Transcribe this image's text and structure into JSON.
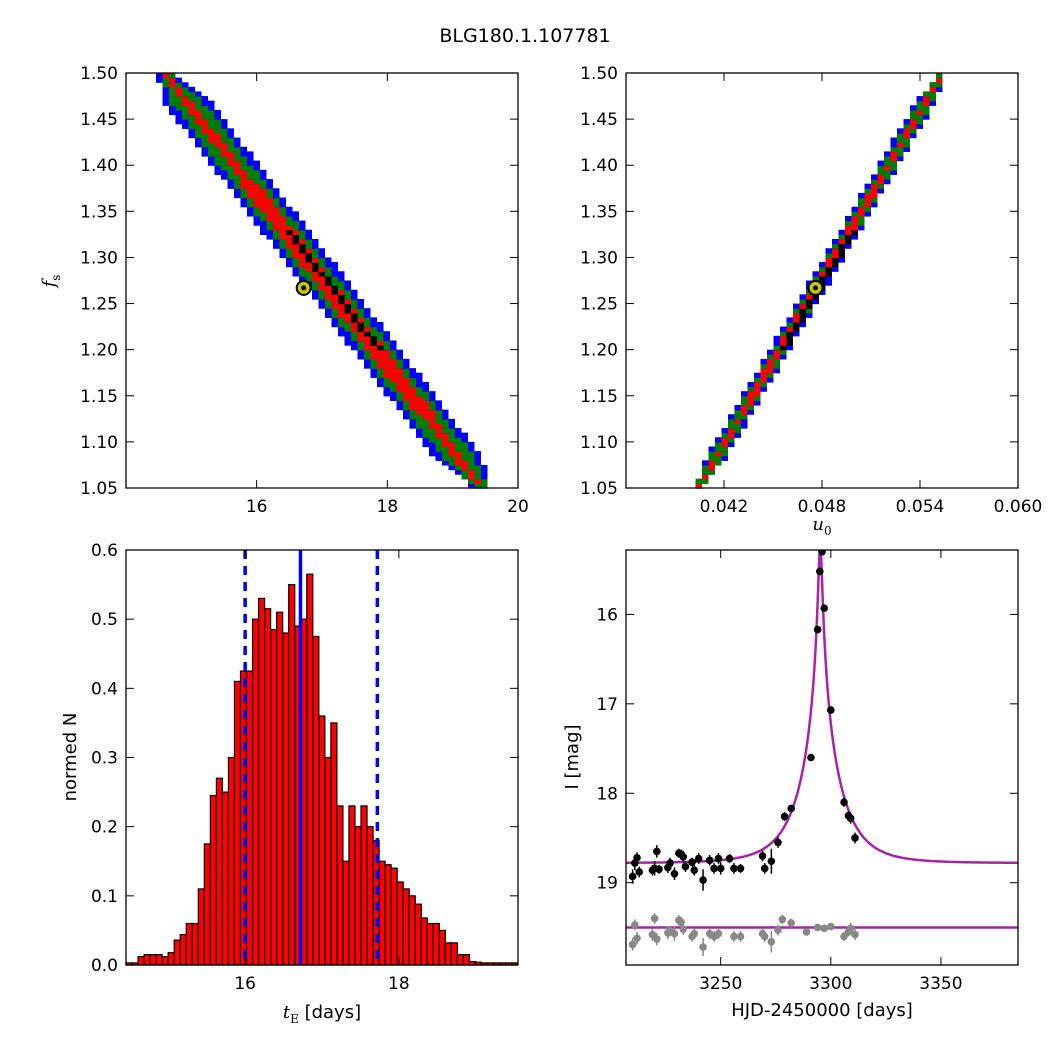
{
  "title": "BLG180.1.107781",
  "colors": {
    "outer": "#0000ff",
    "middle": "#008000",
    "inner": "#ff0000",
    "trace": "#000000",
    "best_fit_marker": "#c8c800",
    "hist_fill": "#ff0000",
    "hist_edge": "#000000",
    "quantile_line": "#0000ff",
    "model_line": "#aa22aa",
    "data_I": "#000000",
    "data_V": "#888888"
  },
  "chart_data": [
    {
      "name": "tE-fs-contours",
      "type": "heatmap",
      "xlabel": "",
      "ylabel": "f",
      "ylabel_sub": "s",
      "xlim": [
        14.0,
        20.0
      ],
      "ylim": [
        1.05,
        1.5
      ],
      "xticks": [
        16,
        18,
        20
      ],
      "xticklabels": [
        "16",
        "18",
        "20"
      ],
      "yticks": [
        1.05,
        1.1,
        1.15,
        1.2,
        1.25,
        1.3,
        1.35,
        1.4,
        1.45,
        1.5
      ],
      "yticklabels": [
        "1.05",
        "1.10",
        "1.15",
        "1.20",
        "1.25",
        "1.30",
        "1.35",
        "1.40",
        "1.45",
        "1.50"
      ],
      "best_fit": {
        "x": 16.72,
        "y": 1.267
      },
      "ridge": {
        "x_at_ymax": 14.6,
        "x_at_ymin": 19.45
      },
      "half_widths": {
        "outer": 0.36,
        "middle": 0.25,
        "inner": 0.14
      }
    },
    {
      "name": "u0-fs-contours",
      "type": "heatmap",
      "xlabel": "u",
      "xlabel_sub": "0",
      "ylabel": "",
      "xlim": [
        0.036,
        0.06
      ],
      "ylim": [
        1.05,
        1.5
      ],
      "xticks": [
        0.042,
        0.048,
        0.054,
        0.06
      ],
      "xticklabels": [
        "0.042",
        "0.048",
        "0.054",
        "0.060"
      ],
      "yticks": [
        1.05,
        1.1,
        1.15,
        1.2,
        1.25,
        1.3,
        1.35,
        1.4,
        1.45,
        1.5
      ],
      "yticklabels": [
        "1.05",
        "1.10",
        "1.15",
        "1.20",
        "1.25",
        "1.30",
        "1.35",
        "1.40",
        "1.45",
        "1.50"
      ],
      "best_fit": {
        "x": 0.0476,
        "y": 1.267
      },
      "ridge": {
        "x_at_ymin": 0.0404,
        "x_at_ymax": 0.0554
      },
      "half_widths": {
        "outer": 0.0006,
        "middle": 0.00042,
        "inner": 0.00024
      }
    },
    {
      "name": "tE-histogram",
      "type": "bar",
      "xlabel": "t",
      "xlabel_sub": "E",
      "xlabel_rest": " [days]",
      "ylabel": "normed N",
      "xlim": [
        14.45,
        19.55
      ],
      "ylim": [
        0.0,
        0.6
      ],
      "xticks": [
        16,
        18
      ],
      "xticklabels": [
        "16",
        "18"
      ],
      "yticks": [
        0.0,
        0.1,
        0.2,
        0.3,
        0.4,
        0.5,
        0.6
      ],
      "yticklabels": [
        "0.0",
        "0.1",
        "0.2",
        "0.3",
        "0.4",
        "0.5",
        "0.6"
      ],
      "bin_start": 14.45,
      "bin_width": 0.0784,
      "values": [
        0.003,
        0.003,
        0.012,
        0.015,
        0.015,
        0.015,
        0.012,
        0.018,
        0.036,
        0.044,
        0.06,
        0.06,
        0.11,
        0.175,
        0.245,
        0.27,
        0.25,
        0.3,
        0.41,
        0.425,
        0.425,
        0.5,
        0.53,
        0.515,
        0.485,
        0.51,
        0.48,
        0.55,
        0.49,
        0.5,
        0.565,
        0.475,
        0.36,
        0.3,
        0.35,
        0.23,
        0.15,
        0.23,
        0.2,
        0.23,
        0.2,
        0.18,
        0.15,
        0.145,
        0.14,
        0.12,
        0.11,
        0.1,
        0.088,
        0.068,
        0.06,
        0.06,
        0.05,
        0.032,
        0.032,
        0.015,
        0.015,
        0.005,
        0.004,
        0.003,
        0.003,
        0.003,
        0.003,
        0.003,
        0.003
      ],
      "vlines": {
        "median": 16.72,
        "lower": 16.0,
        "upper": 17.72
      }
    },
    {
      "name": "light-curve",
      "type": "scatter",
      "xlabel": "HJD-2450000 [days]",
      "ylabel": "I [mag]",
      "xlim": [
        3207,
        3385
      ],
      "ylim": [
        19.92,
        15.28
      ],
      "xticks": [
        3250,
        3300,
        3350
      ],
      "xticklabels": [
        "3250",
        "3300",
        "3350"
      ],
      "yticks": [
        16,
        17,
        18,
        19
      ],
      "yticklabels": [
        "16",
        "17",
        "18",
        "19"
      ],
      "model": {
        "t0": 3295.2,
        "tE": 16.72,
        "u0": 0.0476,
        "fs": 1.267,
        "I_base": 18.78,
        "V_base": 19.5
      },
      "series": [
        {
          "name": "I",
          "points": [
            [
              3210,
              18.93,
              0.08
            ],
            [
              3211,
              18.78,
              0.08
            ],
            [
              3212,
              18.72,
              0.06
            ],
            [
              3213,
              18.88,
              0.06
            ],
            [
              3219,
              18.86,
              0.06
            ],
            [
              3220,
              18.84,
              0.08
            ],
            [
              3221,
              18.65,
              0.07
            ],
            [
              3222,
              18.85,
              0.05
            ],
            [
              3226,
              18.83,
              0.06
            ],
            [
              3227,
              18.78,
              0.06
            ],
            [
              3229,
              18.9,
              0.07
            ],
            [
              3231,
              18.67,
              0.05
            ],
            [
              3232,
              18.68,
              0.05
            ],
            [
              3233,
              18.71,
              0.06
            ],
            [
              3234,
              18.82,
              0.06
            ],
            [
              3237,
              18.77,
              0.05
            ],
            [
              3238,
              18.86,
              0.06
            ],
            [
              3240,
              18.73,
              0.06
            ],
            [
              3242,
              18.97,
              0.12
            ],
            [
              3245,
              18.75,
              0.06
            ],
            [
              3247,
              18.84,
              0.06
            ],
            [
              3249,
              18.73,
              0.06
            ],
            [
              3250,
              18.84,
              0.07
            ],
            [
              3254,
              18.73,
              0.05
            ],
            [
              3256,
              18.84,
              0.06
            ],
            [
              3259,
              18.84,
              0.05
            ],
            [
              3269,
              18.7,
              0.06
            ],
            [
              3270,
              18.84,
              0.06
            ],
            [
              3273,
              18.76,
              0.14
            ],
            [
              3276,
              18.55,
              0.06
            ],
            [
              3279,
              18.26,
              0.05
            ],
            [
              3282,
              18.17,
              0.04
            ],
            [
              3291,
              17.6,
              0.04
            ],
            [
              3294,
              16.17,
              0.03
            ],
            [
              3295,
              15.52,
              0.03
            ],
            [
              3296,
              15.3,
              0.03
            ],
            [
              3297,
              15.93,
              0.03
            ],
            [
              3300,
              17.07,
              0.03
            ],
            [
              3306,
              18.1,
              0.05
            ],
            [
              3308,
              18.25,
              0.05
            ],
            [
              3309,
              18.28,
              0.06
            ],
            [
              3311,
              18.5,
              0.06
            ]
          ]
        },
        {
          "name": "V",
          "points": [
            [
              3210,
              19.69,
              0.07
            ],
            [
              3211,
              19.47,
              0.06
            ],
            [
              3212,
              19.62,
              0.07
            ],
            [
              3219,
              19.58,
              0.07
            ],
            [
              3220,
              19.4,
              0.06
            ],
            [
              3221,
              19.63,
              0.07
            ],
            [
              3226,
              19.56,
              0.07
            ],
            [
              3227,
              19.54,
              0.06
            ],
            [
              3229,
              19.57,
              0.08
            ],
            [
              3231,
              19.42,
              0.06
            ],
            [
              3232,
              19.44,
              0.06
            ],
            [
              3233,
              19.52,
              0.06
            ],
            [
              3237,
              19.6,
              0.06
            ],
            [
              3238,
              19.57,
              0.06
            ],
            [
              3242,
              19.72,
              0.1
            ],
            [
              3245,
              19.57,
              0.06
            ],
            [
              3247,
              19.6,
              0.06
            ],
            [
              3249,
              19.57,
              0.06
            ],
            [
              3256,
              19.6,
              0.06
            ],
            [
              3259,
              19.6,
              0.06
            ],
            [
              3269,
              19.57,
              0.06
            ],
            [
              3270,
              19.6,
              0.06
            ],
            [
              3273,
              19.66,
              0.12
            ],
            [
              3276,
              19.53,
              0.06
            ],
            [
              3278,
              19.41,
              0.05
            ],
            [
              3282,
              19.45,
              0.05
            ],
            [
              3289,
              19.55,
              0.04
            ],
            [
              3294,
              19.5,
              0.03
            ],
            [
              3297,
              19.51,
              0.03
            ],
            [
              3300,
              19.49,
              0.03
            ],
            [
              3306,
              19.6,
              0.05
            ],
            [
              3308,
              19.55,
              0.05
            ],
            [
              3309,
              19.51,
              0.06
            ],
            [
              3311,
              19.58,
              0.06
            ]
          ]
        }
      ]
    }
  ]
}
